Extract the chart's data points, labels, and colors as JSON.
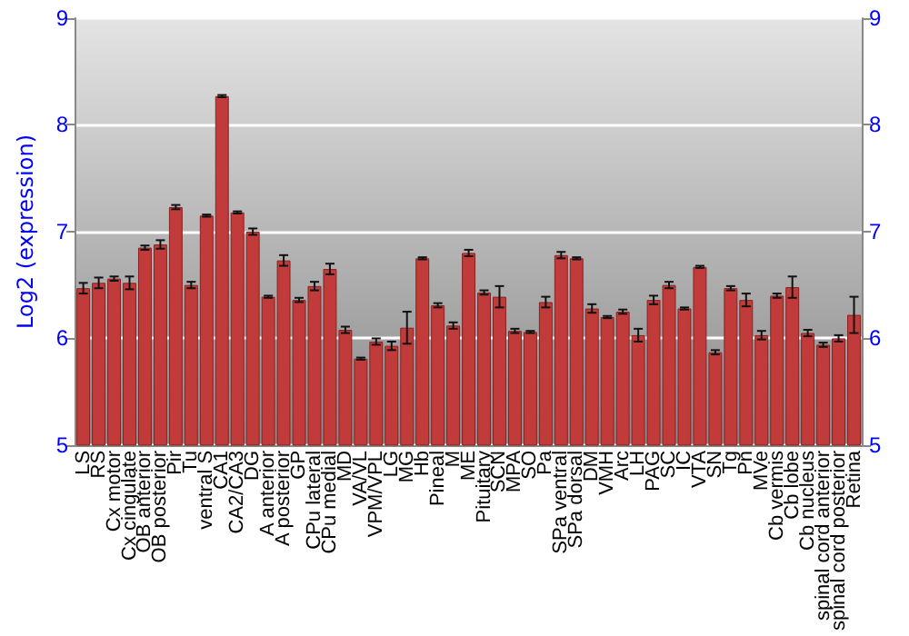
{
  "chart_data": {
    "type": "bar",
    "ylabel": "Log2 (expression)",
    "categories": [
      "LS",
      "RS",
      "Cx motor",
      "Cx cingulate",
      "OB anterior",
      "OB posterior",
      "Pir",
      "Tu",
      "ventral S",
      "CA1",
      "CA2/CA3",
      "DG",
      "A anterior",
      "A posterior",
      "GP",
      "CPu lateral",
      "CPu medial",
      "MD",
      "VA/VL",
      "VPM/VPL",
      "LG",
      "MG",
      "Hb",
      "Pineal",
      "M",
      "ME",
      "Pituitary",
      "SCN",
      "MPA",
      "SO",
      "Pa",
      "SPa ventral",
      "SPa dorsal",
      "DM",
      "VMH",
      "Arc",
      "LH",
      "PAG",
      "SC",
      "IC",
      "VTA",
      "SN",
      "Tg",
      "Pn",
      "MVe",
      "Cb vermis",
      "Cb lobe",
      "Cb nucleus",
      "spinal cord anterior",
      "spinal cord posterior",
      "Retina"
    ],
    "values": [
      6.47,
      6.52,
      6.56,
      6.52,
      6.85,
      6.88,
      7.23,
      6.5,
      7.15,
      8.27,
      7.18,
      7.0,
      6.39,
      6.73,
      6.36,
      6.49,
      6.65,
      6.08,
      5.81,
      5.97,
      5.93,
      6.1,
      6.75,
      6.31,
      6.12,
      6.8,
      6.43,
      6.39,
      6.07,
      6.06,
      6.34,
      6.78,
      6.75,
      6.28,
      6.2,
      6.25,
      6.03,
      6.36,
      6.5,
      6.28,
      6.67,
      5.87,
      6.47,
      6.36,
      6.03,
      6.4,
      6.48,
      6.05,
      5.94,
      6.0,
      6.22
    ],
    "errors": [
      0.05,
      0.05,
      0.02,
      0.06,
      0.02,
      0.04,
      0.02,
      0.03,
      0.01,
      0.01,
      0.01,
      0.03,
      0.01,
      0.05,
      0.02,
      0.04,
      0.05,
      0.03,
      0.01,
      0.03,
      0.04,
      0.15,
      0.01,
      0.02,
      0.03,
      0.03,
      0.02,
      0.1,
      0.02,
      0.01,
      0.05,
      0.03,
      0.01,
      0.04,
      0.01,
      0.02,
      0.06,
      0.04,
      0.03,
      0.01,
      0.01,
      0.02,
      0.02,
      0.06,
      0.04,
      0.02,
      0.1,
      0.03,
      0.02,
      0.03,
      0.17
    ],
    "color": "#c23b3b",
    "ylim": [
      5,
      9
    ],
    "yticks": [
      5,
      6,
      7,
      8,
      9
    ],
    "y2lim": [
      5,
      9
    ],
    "y2ticks": [
      5,
      6,
      7,
      8,
      9
    ],
    "grid": "y"
  }
}
